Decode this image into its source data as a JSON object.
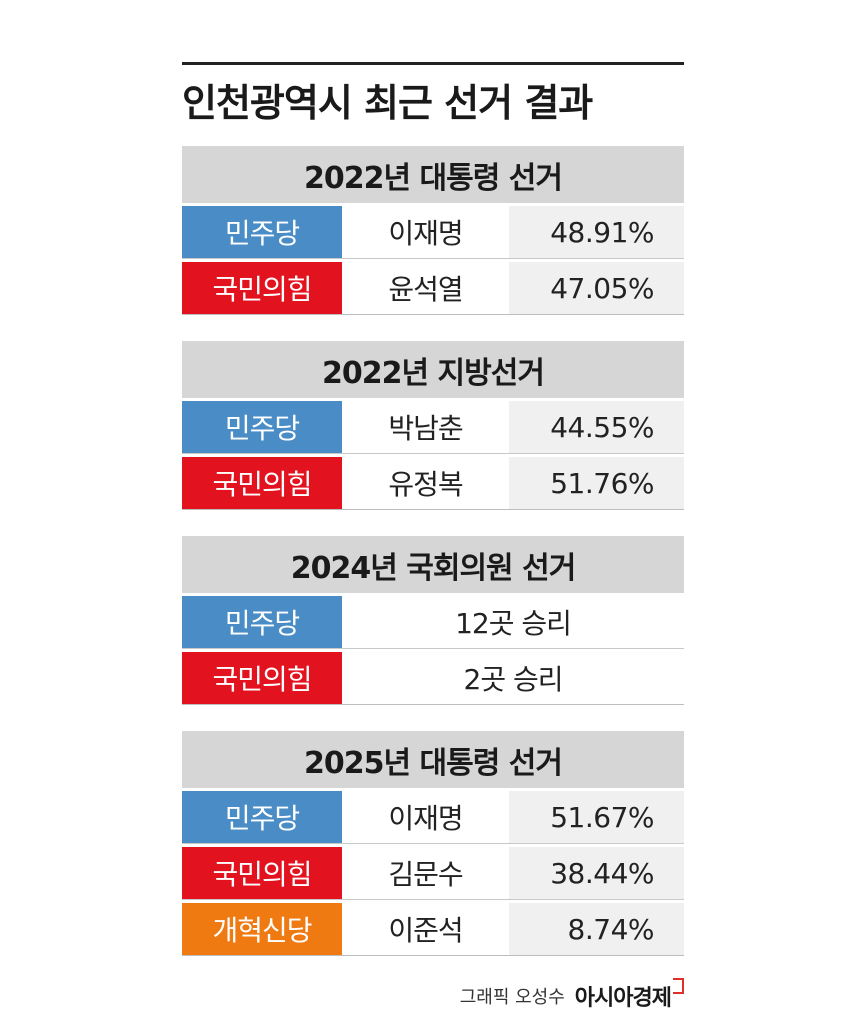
{
  "title": "인천광역시 최근 선거 결과",
  "colors": {
    "democratic": "#4a8dc6",
    "ppp": "#e3121f",
    "reform": "#f07a12"
  },
  "sections": [
    {
      "header": "2022년 대통령 선거",
      "rows": [
        {
          "party": "민주당",
          "candidate": "이재명",
          "pct": "48.91%",
          "color": "democratic"
        },
        {
          "party": "국민의힘",
          "candidate": "윤석열",
          "pct": "47.05%",
          "color": "ppp"
        }
      ]
    },
    {
      "header": "2022년 지방선거",
      "rows": [
        {
          "party": "민주당",
          "candidate": "박남춘",
          "pct": "44.55%",
          "color": "democratic"
        },
        {
          "party": "국민의힘",
          "candidate": "유정복",
          "pct": "51.76%",
          "color": "ppp"
        }
      ]
    },
    {
      "header": "2024년 국회의원 선거",
      "rows": [
        {
          "party": "민주당",
          "result": "12곳 승리",
          "color": "democratic"
        },
        {
          "party": "국민의힘",
          "result": "2곳 승리",
          "color": "ppp"
        }
      ]
    },
    {
      "header": "2025년 대통령 선거",
      "rows": [
        {
          "party": "민주당",
          "candidate": "이재명",
          "pct": "51.67%",
          "color": "democratic"
        },
        {
          "party": "국민의힘",
          "candidate": "김문수",
          "pct": "38.44%",
          "color": "ppp"
        },
        {
          "party": "개혁신당",
          "candidate": "이준석",
          "pct": "8.74%",
          "color": "reform"
        }
      ]
    }
  ],
  "credit": {
    "text": "그래픽 오성수",
    "brand": "아시아경제"
  }
}
